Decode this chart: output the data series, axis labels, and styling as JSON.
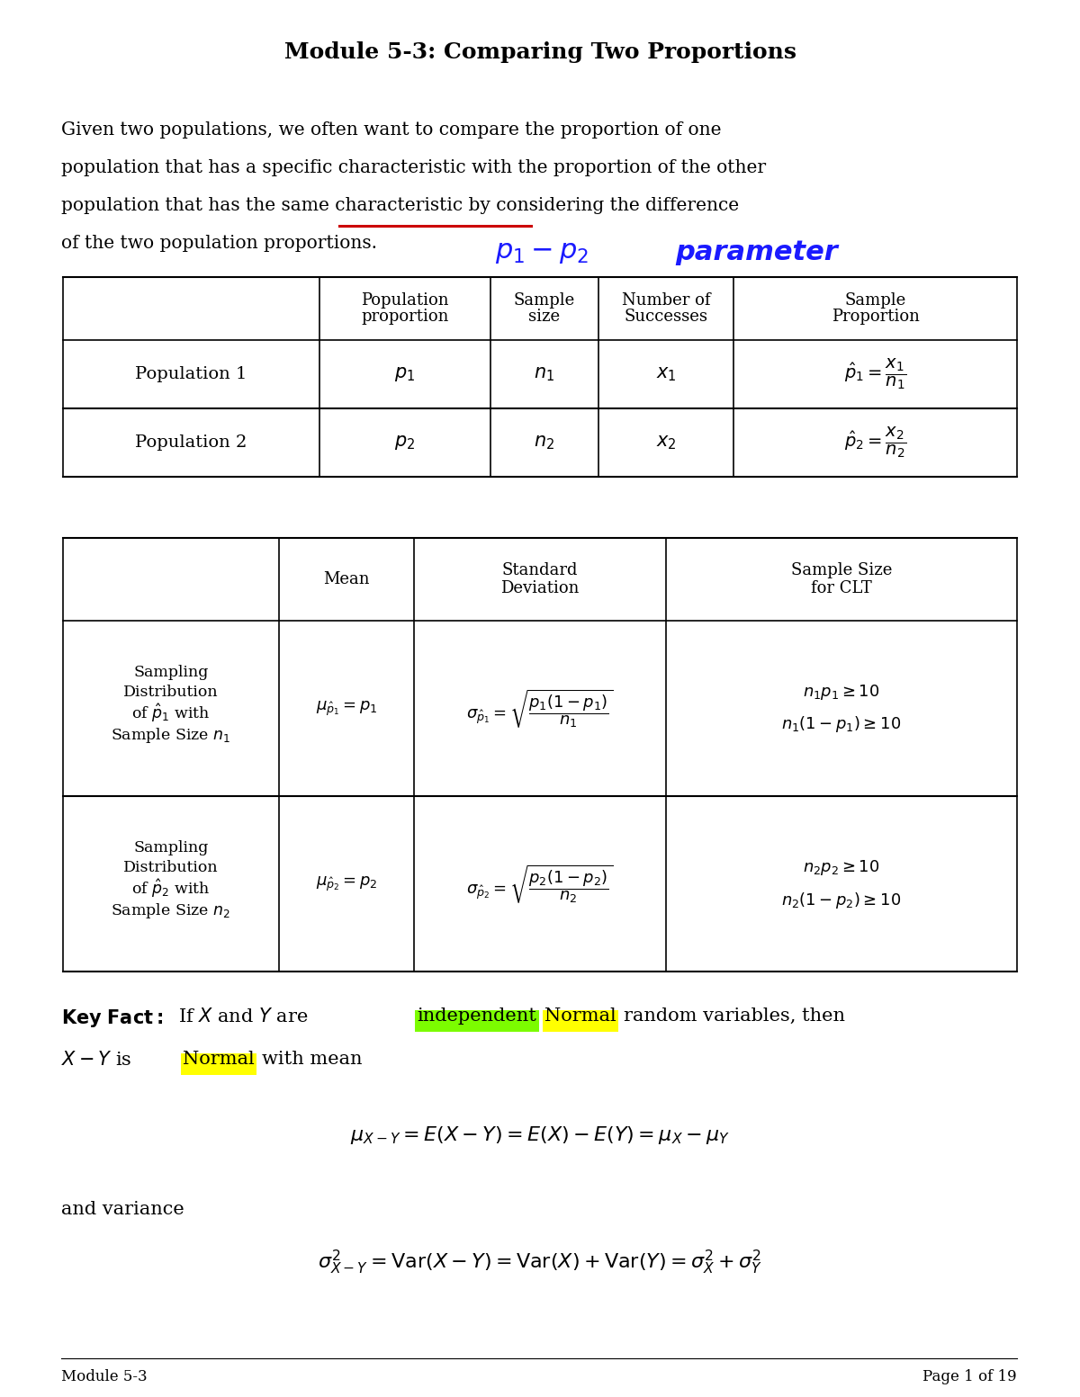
{
  "title": "Module 5-3: Comparing Two Proportions",
  "bg_color": "#ffffff",
  "page_label": "Module 5-3",
  "page_number": "Page 1 of 19",
  "intro_lines": [
    "Given two populations, we often want to compare the proportion of one",
    "population that has a specific characteristic with the proportion of the other",
    "population that has the same characteristic by considering the difference",
    "of the two population proportions."
  ],
  "underline_color": "#cc0000",
  "annotation_color": "#1a1aff",
  "highlight_green": "#7CFC00",
  "highlight_yellow": "#FFFF00"
}
